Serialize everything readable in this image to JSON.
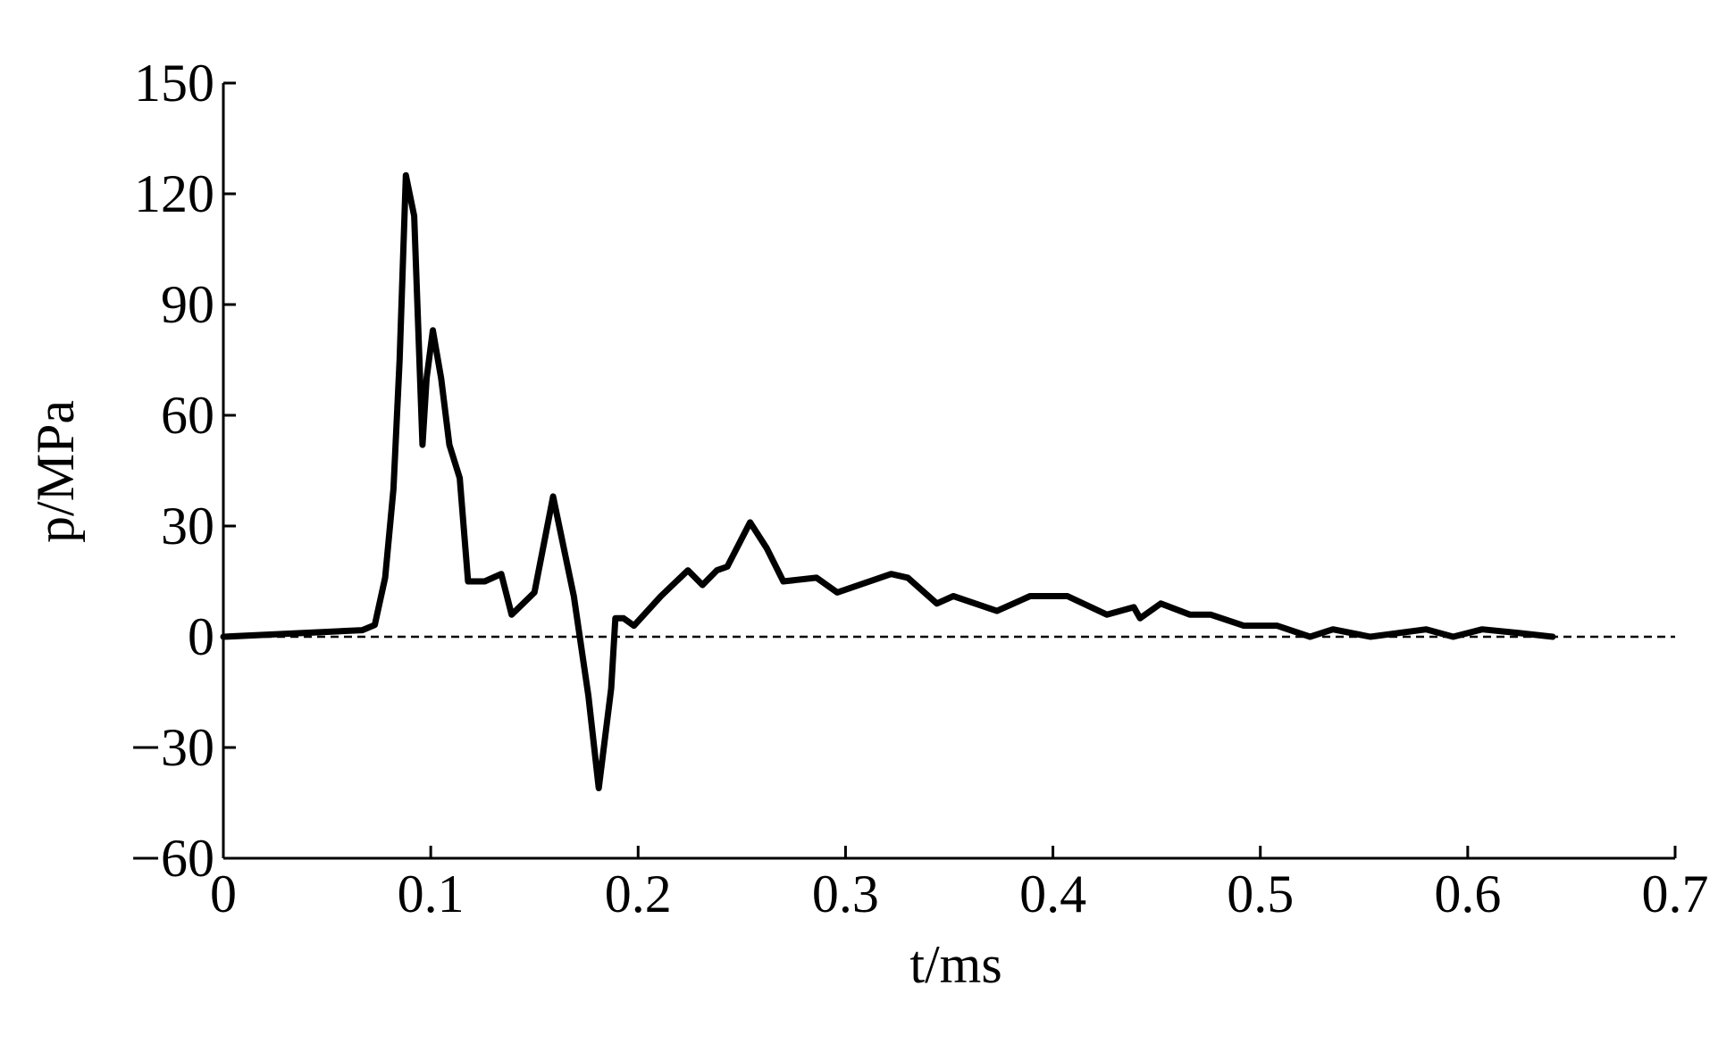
{
  "chart_data": {
    "type": "line",
    "xlabel": "t/ms",
    "ylabel": "p/MPa",
    "xlim": [
      0,
      0.7
    ],
    "xticks": [
      0,
      0.1,
      0.2,
      0.3,
      0.4,
      0.5,
      0.6,
      0.7
    ],
    "ylim": [
      -60,
      150
    ],
    "yticks": [
      {
        "value": -60,
        "label": "−60"
      },
      {
        "value": -30,
        "label": "−30"
      },
      0,
      30,
      60,
      90,
      120,
      150
    ],
    "reference_line": 0,
    "series": [
      {
        "color": "#000000",
        "x": [
          0,
          0.067,
          0.073,
          0.078,
          0.082,
          0.085,
          0.088,
          0.092,
          0.096,
          0.098,
          0.101,
          0.105,
          0.109,
          0.114,
          0.118,
          0.126,
          0.134,
          0.139,
          0.15,
          0.159,
          0.166,
          0.169,
          0.176,
          0.181,
          0.187,
          0.189,
          0.193,
          0.198,
          0.211,
          0.224,
          0.231,
          0.238,
          0.243,
          0.254,
          0.262,
          0.27,
          0.286,
          0.296,
          0.322,
          0.33,
          0.344,
          0.352,
          0.373,
          0.389,
          0.407,
          0.426,
          0.439,
          0.442,
          0.452,
          0.466,
          0.476,
          0.492,
          0.508,
          0.524,
          0.535,
          0.553,
          0.58,
          0.593,
          0.607,
          0.625,
          0.641
        ],
        "values": [
          0,
          1.8,
          3.2,
          16,
          40,
          75,
          125,
          114,
          52,
          70,
          83,
          70,
          52,
          43,
          15,
          15,
          17,
          6,
          12,
          38,
          19,
          11,
          -16,
          -41,
          -14,
          5,
          5,
          3,
          11,
          18,
          14,
          18,
          19,
          31,
          24,
          15,
          16,
          12,
          17,
          16,
          9,
          11,
          7,
          11,
          11,
          6,
          8,
          5,
          9,
          6,
          6,
          3,
          3,
          0,
          2,
          0,
          2,
          0,
          2,
          1,
          0
        ]
      }
    ]
  }
}
